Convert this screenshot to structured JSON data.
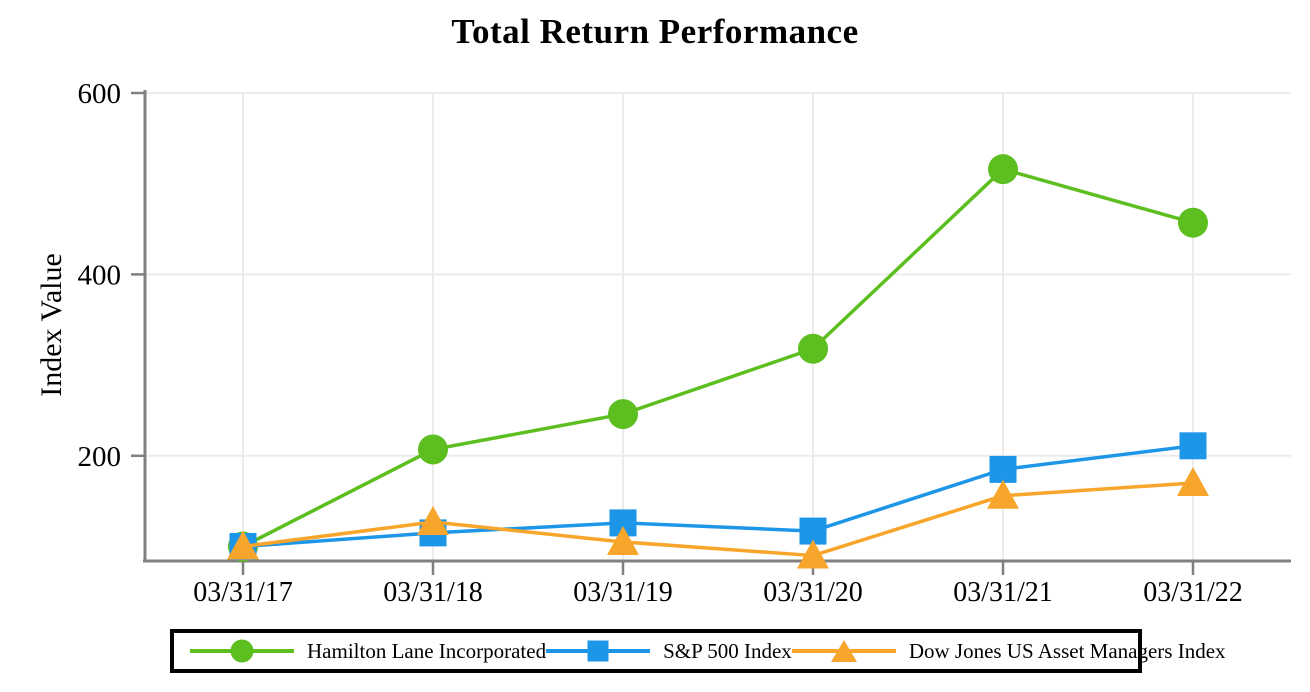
{
  "title": "Total Return Performance",
  "y_axis_title": "Index Value",
  "colors": {
    "hamilton_lane": "#5CBF1F",
    "sp500": "#1E96E8",
    "dow_jones": "#F8A52B",
    "axis": "#808080",
    "gridline": "#ECECEC",
    "text": "#000000",
    "legend_border": "#000000"
  },
  "legend": {
    "items": [
      {
        "key": "hamilton_lane",
        "label": "Hamilton Lane Incorporated",
        "marker": "circle"
      },
      {
        "key": "sp500",
        "label": "S&P 500 Index",
        "marker": "square"
      },
      {
        "key": "dow_jones",
        "label": "Dow Jones US Asset Managers Index",
        "marker": "triangle"
      }
    ]
  },
  "chart_data": {
    "type": "line",
    "title": "Total Return Performance",
    "xlabel": "",
    "ylabel": "Index Value",
    "categories": [
      "03/31/17",
      "03/31/18",
      "03/31/19",
      "03/31/20",
      "03/31/21",
      "03/31/22"
    ],
    "series": [
      {
        "key": "hamilton_lane",
        "name": "Hamilton Lane Incorporated",
        "marker": "circle",
        "values": [
          100,
          207,
          246,
          318,
          516,
          457
        ]
      },
      {
        "key": "sp500",
        "name": "S&P 500 Index",
        "marker": "square",
        "values": [
          100,
          115,
          126,
          117,
          185,
          211
        ]
      },
      {
        "key": "dow_jones",
        "name": "Dow Jones US Asset Managers Index",
        "marker": "triangle",
        "values": [
          100,
          127,
          105,
          90,
          156,
          170
        ]
      }
    ],
    "yticks": [
      200,
      400,
      600
    ],
    "ylim": [
      84,
      600
    ],
    "grid": true,
    "legend_position": "bottom"
  }
}
